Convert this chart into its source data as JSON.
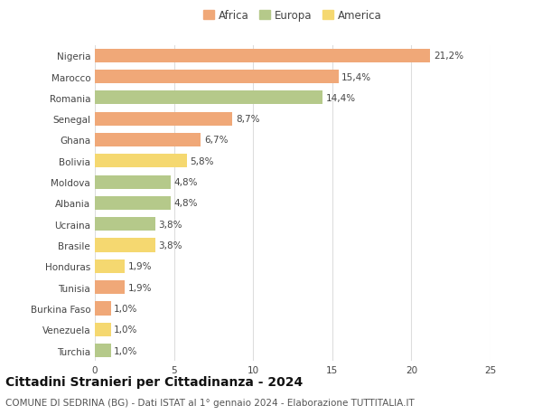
{
  "countries": [
    "Nigeria",
    "Marocco",
    "Romania",
    "Senegal",
    "Ghana",
    "Bolivia",
    "Moldova",
    "Albania",
    "Ucraina",
    "Brasile",
    "Honduras",
    "Tunisia",
    "Burkina Faso",
    "Venezuela",
    "Turchia"
  ],
  "values": [
    21.2,
    15.4,
    14.4,
    8.7,
    6.7,
    5.8,
    4.8,
    4.8,
    3.8,
    3.8,
    1.9,
    1.9,
    1.0,
    1.0,
    1.0
  ],
  "labels": [
    "21,2%",
    "15,4%",
    "14,4%",
    "8,7%",
    "6,7%",
    "5,8%",
    "4,8%",
    "4,8%",
    "3,8%",
    "3,8%",
    "1,9%",
    "1,9%",
    "1,0%",
    "1,0%",
    "1,0%"
  ],
  "continents": [
    "Africa",
    "Africa",
    "Europa",
    "Africa",
    "Africa",
    "America",
    "Europa",
    "Europa",
    "Europa",
    "America",
    "America",
    "Africa",
    "Africa",
    "America",
    "Europa"
  ],
  "continent_colors": {
    "Africa": "#F0A878",
    "Europa": "#B5C98A",
    "America": "#F5D870"
  },
  "legend_labels": [
    "Africa",
    "Europa",
    "America"
  ],
  "legend_colors": [
    "#F0A878",
    "#B5C98A",
    "#F5D870"
  ],
  "title": "Cittadini Stranieri per Cittadinanza - 2024",
  "subtitle": "COMUNE DI SEDRINA (BG) - Dati ISTAT al 1° gennaio 2024 - Elaborazione TUTTITALIA.IT",
  "xlim": [
    0,
    25
  ],
  "xticks": [
    0,
    5,
    10,
    15,
    20,
    25
  ],
  "background_color": "#ffffff",
  "grid_color": "#dddddd",
  "bar_height": 0.65,
  "label_fontsize": 7.5,
  "tick_fontsize": 7.5,
  "legend_fontsize": 8.5,
  "title_fontsize": 10,
  "subtitle_fontsize": 7.5
}
